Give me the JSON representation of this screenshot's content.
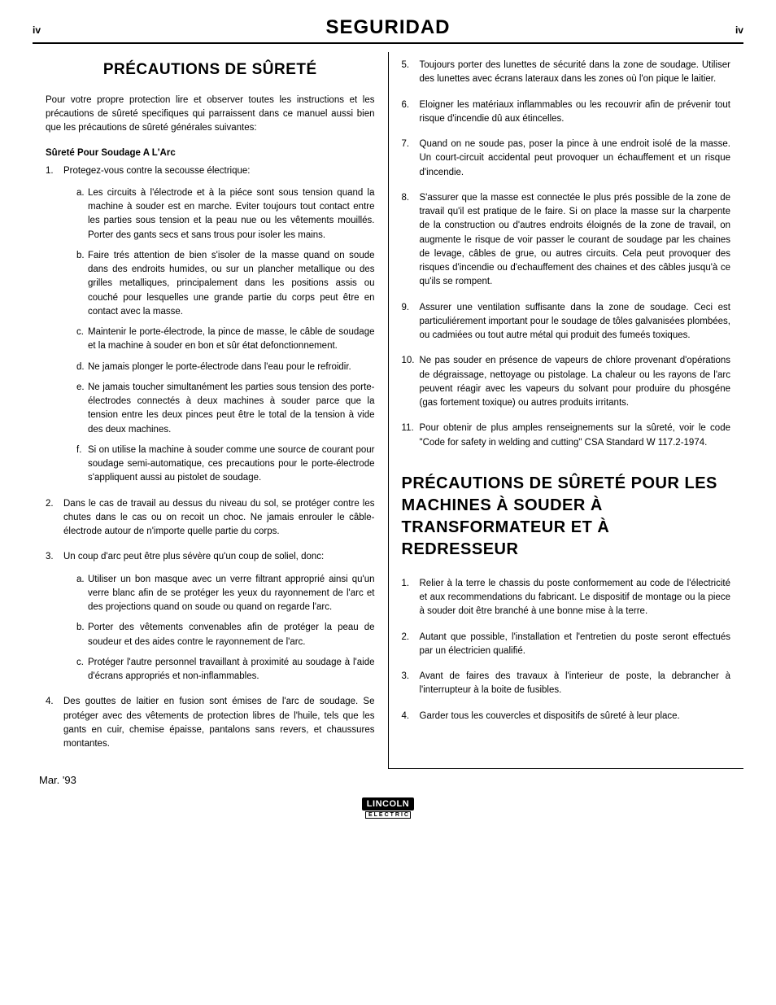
{
  "page": {
    "num_left": "iv",
    "title": "SEGURIDAD",
    "num_right": "iv"
  },
  "left": {
    "title": "PRÉCAUTIONS DE SÛRETÉ",
    "intro": "Pour votre propre protection lire et observer toutes les instructions et les précautions de sûreté specifiques qui parraissent dans ce manuel aussi bien que les précautions de sûreté générales suivantes:",
    "sub": "Sûreté Pour Soudage A L'Arc",
    "items": [
      {
        "n": "1.",
        "t": "Protegez-vous contre la secousse électrique:",
        "sub": [
          {
            "l": "a.",
            "t": "Les circuits à l'électrode et à la piéce sont sous tension quand la machine à souder est en marche. Eviter toujours tout contact entre les parties sous tension et la peau nue ou les vêtements mouillés. Porter des gants secs et sans trous pour isoler les mains."
          },
          {
            "l": "b.",
            "t": "Faire trés attention de bien s'isoler de la masse quand on soude dans des endroits humides, ou sur un plancher metallique ou des grilles metalliques, principalement dans les positions assis ou couché pour lesquelles une grande partie du corps peut être en contact avec la masse."
          },
          {
            "l": "c.",
            "t": "Maintenir le porte-électrode, la pince de masse, le câble de soudage et la machine à souder en bon et sûr état defonctionnement."
          },
          {
            "l": "d.",
            "t": "Ne jamais plonger le porte-électrode dans l'eau pour le refroidir."
          },
          {
            "l": "e.",
            "t": "Ne jamais toucher simultanément les parties sous tension des porte-électrodes connectés à deux machines à souder parce que la tension entre les deux pinces peut être le total de la tension à vide des deux machines."
          },
          {
            "l": "f.",
            "t": "Si on utilise la machine à souder comme une source de courant pour soudage semi-automatique, ces precautions pour le porte-électrode s'appliquent aussi au pistolet de soudage."
          }
        ]
      },
      {
        "n": "2.",
        "t": "Dans le cas de travail au dessus du niveau du sol, se protéger contre les chutes dans le cas ou on recoit un choc. Ne jamais enrouler le câble-électrode autour de n'importe quelle partie du corps."
      },
      {
        "n": "3.",
        "t": "Un coup d'arc peut être plus sévère qu'un coup de soliel, donc:",
        "sub": [
          {
            "l": "a.",
            "t": "Utiliser un bon masque avec un verre filtrant approprié ainsi qu'un verre blanc afin de se protéger les yeux du rayonnement de l'arc et des projections quand on soude ou quand on regarde l'arc."
          },
          {
            "l": "b.",
            "t": "Porter des vêtements convenables afin de protéger la peau de soudeur et des aides contre le rayonnement de l'arc."
          },
          {
            "l": "c.",
            "t": "Protéger l'autre personnel travaillant à proximité au soudage à l'aide d'écrans appropriés et non-inflammables."
          }
        ]
      },
      {
        "n": "4.",
        "t": "Des gouttes de laitier en fusion sont émises de l'arc de soudage. Se protéger avec des vêtements de protection libres de l'huile, tels que les gants en cuir, chemise épaisse, pantalons sans revers, et chaussures montantes."
      }
    ]
  },
  "right": {
    "items": [
      {
        "n": "5.",
        "t": "Toujours porter des lunettes de sécurité dans la zone de soudage. Utiliser des lunettes avec écrans lateraux dans les zones où l'on pique le laitier."
      },
      {
        "n": "6.",
        "t": "Eloigner les matériaux inflammables ou les recouvrir afin de prévenir tout risque d'incendie dû aux étincelles."
      },
      {
        "n": "7.",
        "t": "Quand on ne soude pas, poser la pince à une endroit isolé de la masse. Un court-circuit accidental peut provoquer un échauffement et un risque d'incendie."
      },
      {
        "n": "8.",
        "t": "S'assurer que la masse est connectée le plus prés possible de la zone de travail qu'il est pratique de le faire. Si on place la masse sur la charpente de la construction ou d'autres endroits éloignés de la zone de travail, on augmente le risque de voir passer le courant de soudage par les chaines de levage, câbles de grue, ou autres circuits. Cela peut provoquer des risques d'incendie ou d'echauffement des chaines et des câbles jusqu'à ce qu'ils se rompent."
      },
      {
        "n": "9.",
        "t": "Assurer une ventilation suffisante dans la zone de soudage. Ceci est particuliérement important pour le soudage de tôles galvanisées plombées, ou cadmiées ou tout autre métal qui produit des fumeés toxiques."
      },
      {
        "n": "10.",
        "t": "Ne pas souder en présence de vapeurs de chlore provenant d'opérations de dégraissage, nettoyage ou pistolage. La chaleur ou les rayons de l'arc peuvent réagir avec les vapeurs du solvant pour produire du phosgéne (gas fortement toxique) ou autres produits irritants."
      },
      {
        "n": "11.",
        "t": "Pour obtenir de plus amples renseignements sur la sûreté, voir le code \"Code for safety in welding and cutting\" CSA Standard W 117.2-1974."
      }
    ],
    "title2": "PRÉCAUTIONS DE SÛRETÉ POUR LES MACHINES À SOUDER À TRANSFORMATEUR ET À REDRESSEUR",
    "items2": [
      {
        "n": "1.",
        "t": "Relier à la terre le chassis du poste conformement au code de l'électricité et aux recommendations du fabricant. Le dispositif de montage ou la piece à souder doit être branché à une bonne mise à la terre."
      },
      {
        "n": "2.",
        "t": "Autant que possible, l'installation et l'entretien du poste seront effectués par un électricien qualifié."
      },
      {
        "n": "3.",
        "t": "Avant de faires des travaux à l'interieur de poste, la debrancher à l'interrupteur à la boite de fusibles."
      },
      {
        "n": "4.",
        "t": "Garder tous les couvercles et dispositifs de sûreté à leur place."
      }
    ]
  },
  "footer": {
    "date": "Mar. '93",
    "logo_top": "LINCOLN",
    "logo_bot": "ELECTRIC"
  }
}
